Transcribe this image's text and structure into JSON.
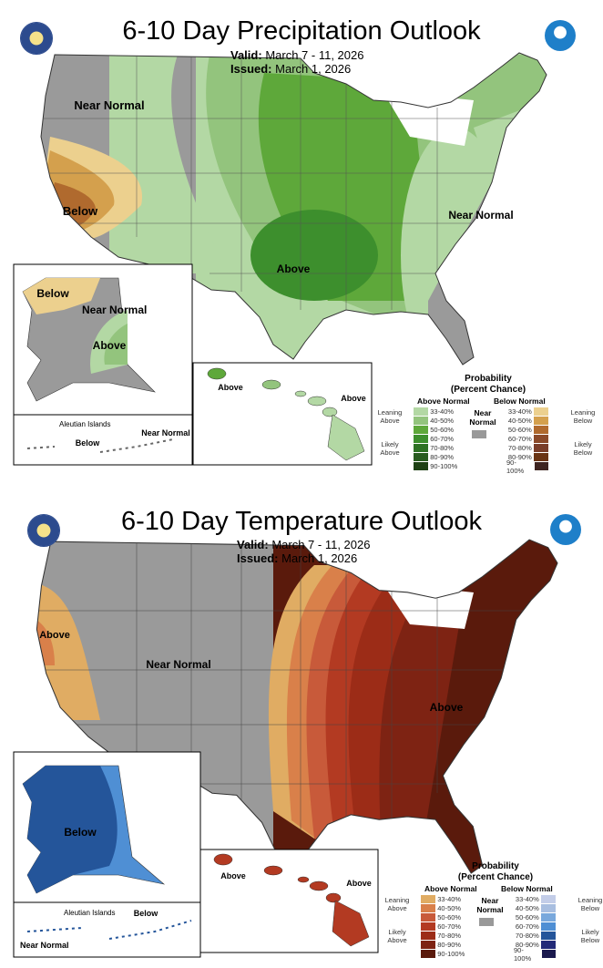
{
  "precip": {
    "title": "6-10 Day Precipitation Outlook",
    "valid_label": "Valid:",
    "valid": "March 7 - 11, 2026",
    "issued_label": "Issued:",
    "issued": "March 1, 2026",
    "map_labels": {
      "near_normal_west": "Near Normal",
      "below_ca": "Below",
      "above_central": "Above",
      "near_normal_east": "Near Normal",
      "ak_below": "Below",
      "ak_near_normal": "Near Normal",
      "ak_above": "Above",
      "aleutian": "Aleutian Islands",
      "aleutian_below": "Below",
      "aleutian_near": "Near Normal",
      "hi_above_west": "Above",
      "hi_above_east": "Above"
    }
  },
  "temp": {
    "title": "6-10 Day Temperature Outlook",
    "valid_label": "Valid:",
    "valid": "March 7 - 11, 2026",
    "issued_label": "Issued:",
    "issued": "March 1, 2026",
    "map_labels": {
      "above_ca": "Above",
      "near_normal_west": "Near Normal",
      "above_east": "Above",
      "ak_below": "Below",
      "aleutian": "Aleutian Islands",
      "aleutian_near": "Near Normal",
      "aleutian_below": "Below",
      "hi_above_west": "Above",
      "hi_above_east": "Above"
    }
  },
  "legend_common": {
    "title": "Probability",
    "subtitle": "(Percent Chance)",
    "above_head": "Above Normal",
    "below_head": "Below Normal",
    "near_normal": "Near Normal",
    "leaning_above": "Leaning Above",
    "likely_above": "Likely Above",
    "leaning_below": "Leaning Below",
    "likely_below": "Likely Below",
    "ranges": [
      "33-40%",
      "40-50%",
      "50-60%",
      "60-70%",
      "70-80%",
      "80-90%",
      "90-100%"
    ],
    "near_normal_color": "#999999"
  },
  "colors": {
    "precip_above": [
      "#b3d8a4",
      "#93c47d",
      "#5ea83a",
      "#3d8f2d",
      "#2e7224",
      "#285c1f",
      "#1e4114"
    ],
    "precip_below": [
      "#ecd08e",
      "#d4a04d",
      "#b06a2e",
      "#8b4a2a",
      "#7a3e2a",
      "#6a3414",
      "#3e2420"
    ],
    "temp_above": [
      "#e0ac63",
      "#d9804a",
      "#c85a3a",
      "#b33a22",
      "#9c2c17",
      "#7e2313",
      "#5a1a0c"
    ],
    "temp_below": [
      "#c3cde8",
      "#a8bee0",
      "#79a8dc",
      "#4f8fd4",
      "#24559a",
      "#232a78",
      "#1b1a4e"
    ]
  }
}
